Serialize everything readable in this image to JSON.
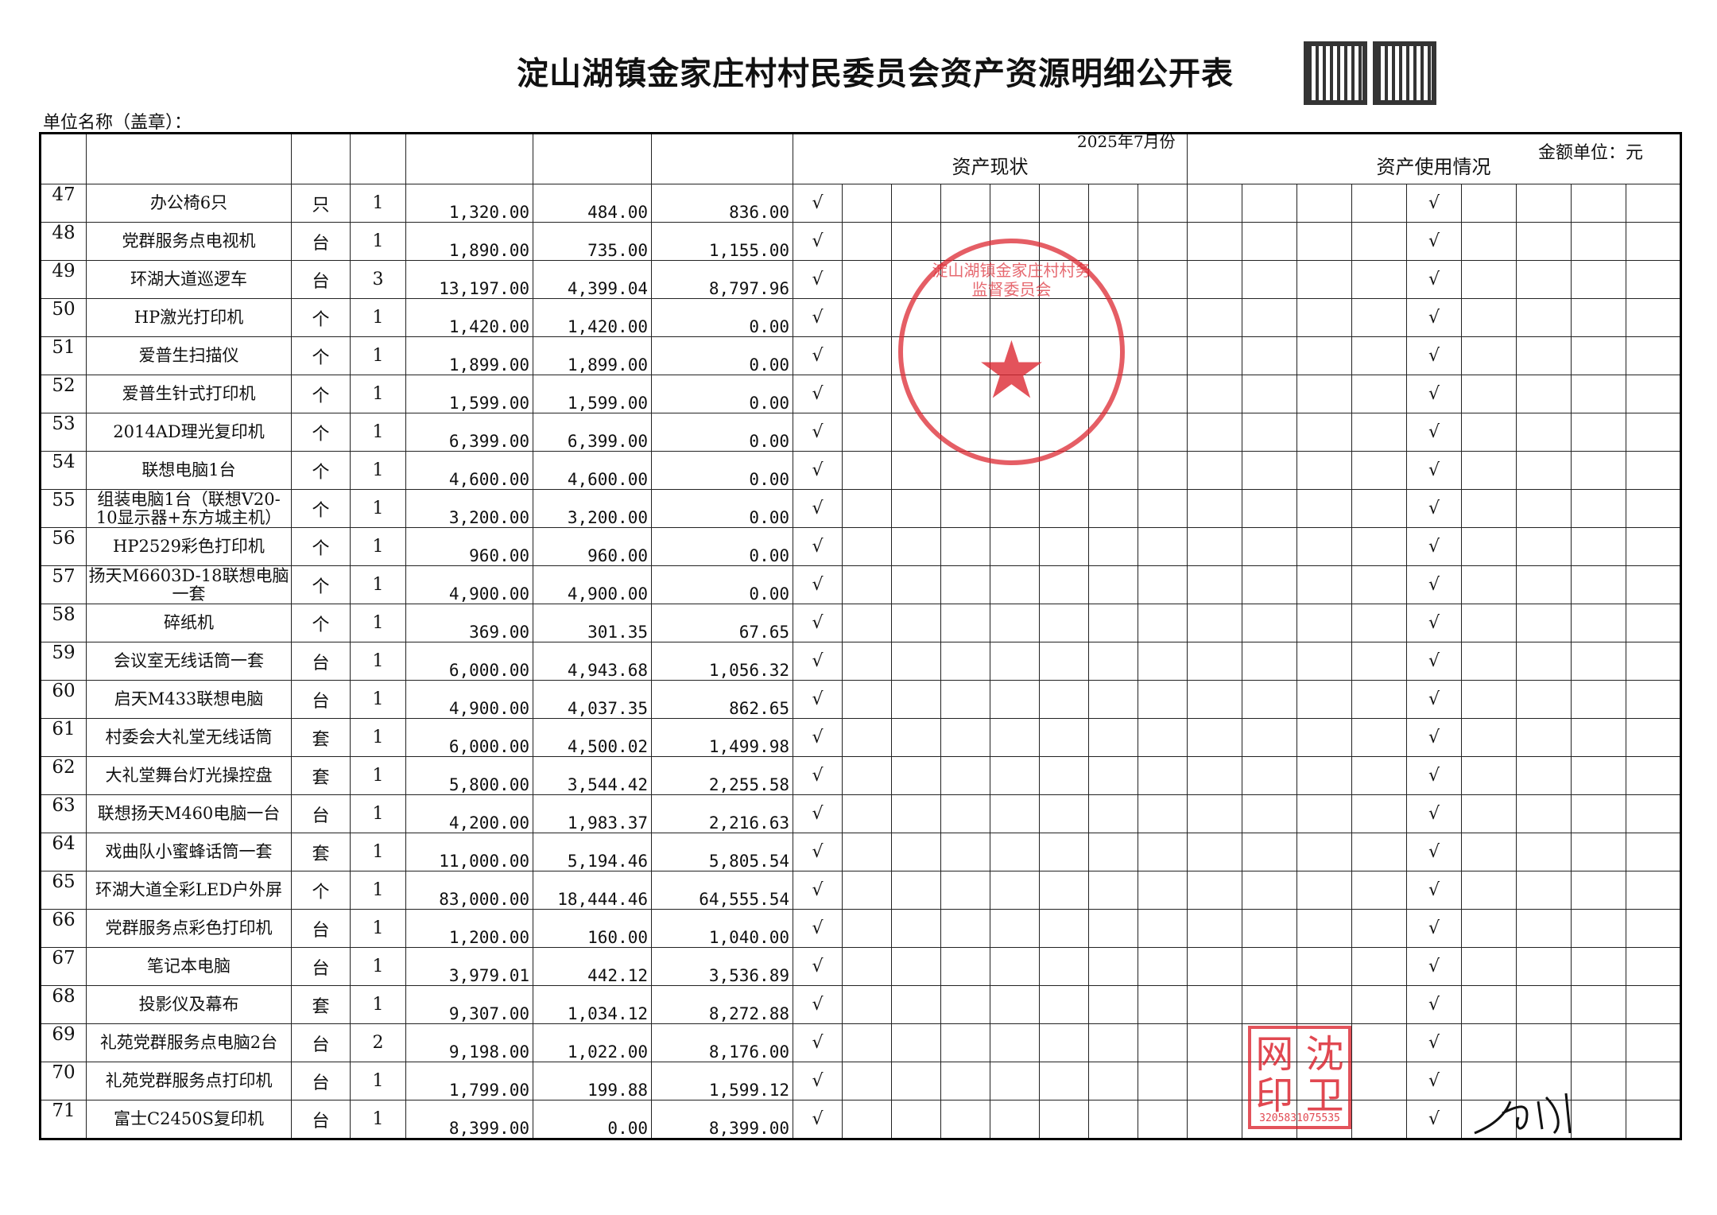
{
  "title": "淀山湖镇金家庄村村民委员会资产资源明细公开表",
  "unit_label": "单位名称（盖章）：",
  "period": "2025年7月份",
  "money_unit": "金额单位：元",
  "group_headers": {
    "status": "资产现状",
    "usage": "资产使用情况"
  },
  "check_mark": "√",
  "rows": [
    {
      "no": "47",
      "name": "办公椅6只",
      "unit": "只",
      "qty": "1",
      "original": "1,320.00",
      "depreciation": "484.00",
      "net": "836.00"
    },
    {
      "no": "48",
      "name": "党群服务点电视机",
      "unit": "台",
      "qty": "1",
      "original": "1,890.00",
      "depreciation": "735.00",
      "net": "1,155.00"
    },
    {
      "no": "49",
      "name": "环湖大道巡逻车",
      "unit": "台",
      "qty": "3",
      "original": "13,197.00",
      "depreciation": "4,399.04",
      "net": "8,797.96"
    },
    {
      "no": "50",
      "name": "HP激光打印机",
      "unit": "个",
      "qty": "1",
      "original": "1,420.00",
      "depreciation": "1,420.00",
      "net": "0.00"
    },
    {
      "no": "51",
      "name": "爱普生扫描仪",
      "unit": "个",
      "qty": "1",
      "original": "1,899.00",
      "depreciation": "1,899.00",
      "net": "0.00"
    },
    {
      "no": "52",
      "name": "爱普生针式打印机",
      "unit": "个",
      "qty": "1",
      "original": "1,599.00",
      "depreciation": "1,599.00",
      "net": "0.00"
    },
    {
      "no": "53",
      "name": "2014AD理光复印机",
      "unit": "个",
      "qty": "1",
      "original": "6,399.00",
      "depreciation": "6,399.00",
      "net": "0.00"
    },
    {
      "no": "54",
      "name": "联想电脑1台",
      "unit": "个",
      "qty": "1",
      "original": "4,600.00",
      "depreciation": "4,600.00",
      "net": "0.00"
    },
    {
      "no": "55",
      "name": "组装电脑1台（联想V20-10显示器+东方城主机）",
      "unit": "个",
      "qty": "1",
      "original": "3,200.00",
      "depreciation": "3,200.00",
      "net": "0.00"
    },
    {
      "no": "56",
      "name": "HP2529彩色打印机",
      "unit": "个",
      "qty": "1",
      "original": "960.00",
      "depreciation": "960.00",
      "net": "0.00"
    },
    {
      "no": "57",
      "name": "扬天M6603D-18联想电脑一套",
      "unit": "个",
      "qty": "1",
      "original": "4,900.00",
      "depreciation": "4,900.00",
      "net": "0.00"
    },
    {
      "no": "58",
      "name": "碎纸机",
      "unit": "个",
      "qty": "1",
      "original": "369.00",
      "depreciation": "301.35",
      "net": "67.65"
    },
    {
      "no": "59",
      "name": "会议室无线话筒一套",
      "unit": "台",
      "qty": "1",
      "original": "6,000.00",
      "depreciation": "4,943.68",
      "net": "1,056.32"
    },
    {
      "no": "60",
      "name": "启天M433联想电脑",
      "unit": "台",
      "qty": "1",
      "original": "4,900.00",
      "depreciation": "4,037.35",
      "net": "862.65"
    },
    {
      "no": "61",
      "name": "村委会大礼堂无线话筒",
      "unit": "套",
      "qty": "1",
      "original": "6,000.00",
      "depreciation": "4,500.02",
      "net": "1,499.98"
    },
    {
      "no": "62",
      "name": "大礼堂舞台灯光操控盘",
      "unit": "套",
      "qty": "1",
      "original": "5,800.00",
      "depreciation": "3,544.42",
      "net": "2,255.58"
    },
    {
      "no": "63",
      "name": "联想扬天M460电脑一台",
      "unit": "台",
      "qty": "1",
      "original": "4,200.00",
      "depreciation": "1,983.37",
      "net": "2,216.63"
    },
    {
      "no": "64",
      "name": "戏曲队小蜜蜂话筒一套",
      "unit": "套",
      "qty": "1",
      "original": "11,000.00",
      "depreciation": "5,194.46",
      "net": "5,805.54"
    },
    {
      "no": "65",
      "name": "环湖大道全彩LED户外屏",
      "unit": "个",
      "qty": "1",
      "original": "83,000.00",
      "depreciation": "18,444.46",
      "net": "64,555.54"
    },
    {
      "no": "66",
      "name": "党群服务点彩色打印机",
      "unit": "台",
      "qty": "1",
      "original": "1,200.00",
      "depreciation": "160.00",
      "net": "1,040.00"
    },
    {
      "no": "67",
      "name": "笔记本电脑",
      "unit": "台",
      "qty": "1",
      "original": "3,979.01",
      "depreciation": "442.12",
      "net": "3,536.89"
    },
    {
      "no": "68",
      "name": "投影仪及幕布",
      "unit": "套",
      "qty": "1",
      "original": "9,307.00",
      "depreciation": "1,034.12",
      "net": "8,272.88"
    },
    {
      "no": "69",
      "name": "礼苑党群服务点电脑2台",
      "unit": "台",
      "qty": "2",
      "original": "9,198.00",
      "depreciation": "1,022.00",
      "net": "8,176.00"
    },
    {
      "no": "70",
      "name": "礼苑党群服务点打印机",
      "unit": "台",
      "qty": "1",
      "original": "1,799.00",
      "depreciation": "199.88",
      "net": "1,599.12"
    },
    {
      "no": "71",
      "name": "富士C2450S复印机",
      "unit": "台",
      "qty": "1",
      "original": "8,399.00",
      "depreciation": "0.00",
      "net": "8,399.00"
    }
  ],
  "status_checked_column": 1,
  "usage_checked_column": 5,
  "status_column_count": 8,
  "usage_column_count": 9,
  "seal": {
    "text": "淀山湖镇金家庄村村务监督委员会",
    "color": "#dc2832"
  },
  "personal_seal": {
    "text": "沈卫刚印",
    "code": "3205831075535"
  },
  "colors": {
    "seal": "#dc2832",
    "ink": "#111111"
  }
}
